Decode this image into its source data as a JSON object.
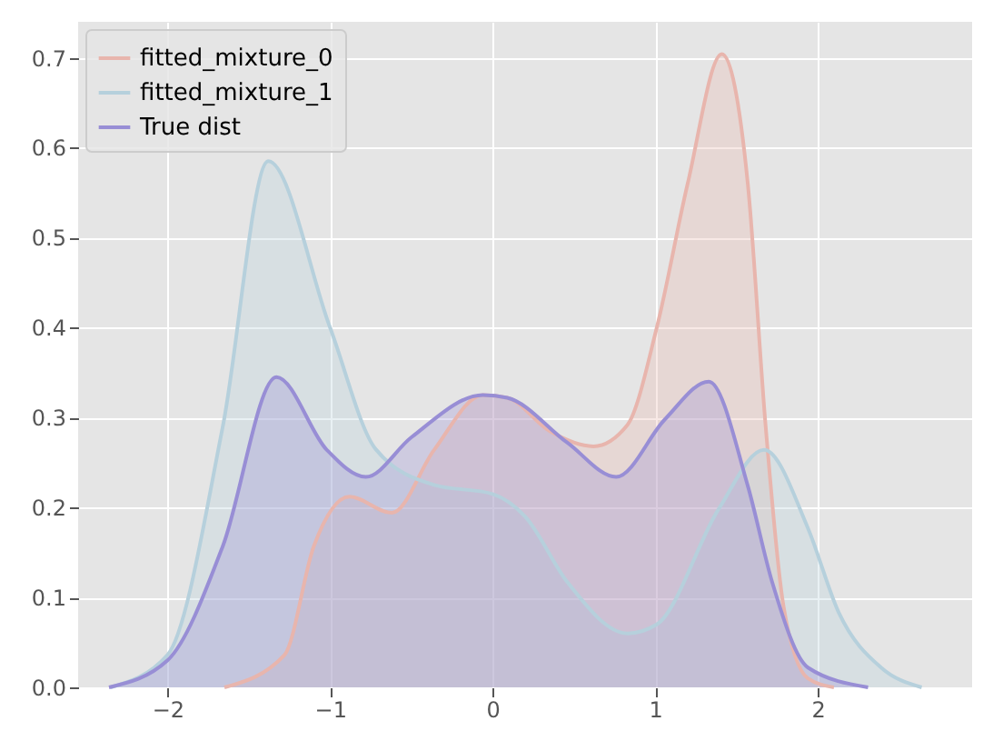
{
  "chart_data": {
    "type": "area",
    "xlim": [
      -2.55,
      2.95
    ],
    "ylim": [
      0,
      0.74
    ],
    "xticks": [
      -2,
      -1,
      0,
      1,
      2
    ],
    "yticks": [
      {
        "value": 0,
        "label": "0.0"
      },
      0.1,
      0.2,
      0.3,
      0.4,
      0.5,
      0.6,
      0.7
    ],
    "grid": true,
    "legend": "top left",
    "series": [
      {
        "name": "fitted_mixture_0",
        "color": "#e8b5ad",
        "x": [
          -1.65,
          -1.28,
          -1.1,
          -0.88,
          -0.62,
          -0.36,
          -0.06,
          0.09,
          0.35,
          0.62,
          0.83,
          1.01,
          1.2,
          1.41,
          1.57,
          1.68,
          1.79,
          1.94,
          2.1
        ],
        "values": [
          0,
          0.036,
          0.157,
          0.212,
          0.194,
          0.264,
          0.325,
          0.322,
          0.285,
          0.268,
          0.292,
          0.4,
          0.56,
          0.704,
          0.56,
          0.29,
          0.09,
          0.01,
          0
        ]
      },
      {
        "name": "fitted_mixture_1",
        "color": "#b6d0dc",
        "x": [
          -2.35,
          -2,
          -1.66,
          -1.38,
          -1,
          -0.72,
          -0.36,
          0,
          0.2,
          0.46,
          0.83,
          1.01,
          1.39,
          1.67,
          1.94,
          2.13,
          2.39,
          2.64
        ],
        "values": [
          0,
          0.036,
          0.29,
          0.585,
          0.4,
          0.265,
          0.225,
          0.215,
          0.19,
          0.117,
          0.06,
          0.07,
          0.198,
          0.264,
          0.177,
          0.083,
          0.022,
          0
        ]
      },
      {
        "name": "True dist",
        "color": "#988ed5",
        "x": [
          -2.36,
          -2,
          -1.66,
          -1.33,
          -1.02,
          -0.78,
          -0.5,
          -0.06,
          0.09,
          0.46,
          0.76,
          1.06,
          1.33,
          1.57,
          1.72,
          1.94,
          2.31
        ],
        "values": [
          0,
          0.03,
          0.157,
          0.345,
          0.264,
          0.234,
          0.278,
          0.325,
          0.322,
          0.272,
          0.234,
          0.298,
          0.34,
          0.224,
          0.117,
          0.022,
          0
        ]
      }
    ]
  }
}
